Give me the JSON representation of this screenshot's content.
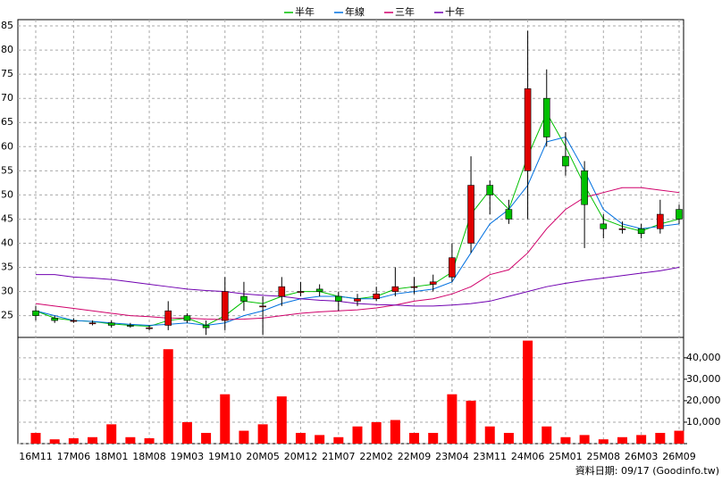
{
  "chart_data": {
    "type": "candlestick",
    "categories": [
      "16M11",
      null,
      "17M06",
      null,
      "18M01",
      null,
      "18M08",
      null,
      "19M03",
      null,
      "19M10",
      null,
      "20M05",
      null,
      "20M12",
      null,
      "21M07",
      null,
      "22M02",
      null,
      "22M09",
      null,
      "23M04",
      null,
      "23M11",
      null,
      "24M06",
      null,
      "25M01",
      null,
      "25M08",
      null,
      "26M03",
      null,
      "26M09"
    ],
    "candles": {
      "up_color": "#e00000",
      "down_color": "#00c000",
      "open": [
        26,
        24.5,
        24,
        23.5,
        23.5,
        23,
        22.5,
        23,
        25,
        23,
        24,
        29,
        27,
        29,
        30,
        30.5,
        29,
        28,
        28.5,
        30,
        31,
        31.5,
        33,
        40,
        52,
        47,
        55,
        70,
        58,
        55,
        44,
        43,
        43,
        43,
        47
      ],
      "high": [
        27,
        25,
        24.5,
        24,
        24,
        23.5,
        23,
        28,
        25.5,
        24,
        33,
        32,
        29,
        33,
        32,
        31.5,
        30,
        29.5,
        31,
        35,
        33,
        33.5,
        40,
        58,
        53,
        49,
        84,
        76,
        63,
        57,
        46,
        44.5,
        44,
        49,
        48
      ],
      "low": [
        24,
        23.5,
        23.5,
        23,
        22.5,
        22.5,
        22,
        22,
        23.5,
        21,
        22,
        26,
        21,
        27,
        29,
        29,
        26,
        27,
        28,
        29,
        29.5,
        30,
        32,
        38,
        46,
        44,
        45,
        60,
        54,
        39,
        41,
        42,
        41,
        42,
        44
      ],
      "close": [
        25,
        24,
        24,
        23.5,
        23,
        22.8,
        22.5,
        26,
        24,
        22.5,
        30,
        28,
        27,
        31,
        30,
        30,
        28,
        28.5,
        29.5,
        31,
        31,
        32,
        37,
        52,
        50,
        45,
        72,
        62,
        56,
        48,
        43,
        43,
        42,
        46,
        45
      ]
    },
    "volume": {
      "color": "#ff0000",
      "axis": "y2",
      "values": [
        5000,
        2000,
        2500,
        3000,
        9000,
        3000,
        2500,
        44000,
        10000,
        5000,
        23000,
        6000,
        9000,
        22000,
        5000,
        4000,
        3000,
        8000,
        10000,
        11000,
        5000,
        5000,
        23000,
        20000,
        8000,
        5000,
        48000,
        8000,
        3000,
        4000,
        2000,
        3000,
        4000,
        5000,
        6000
      ]
    },
    "series": [
      {
        "name": "半年",
        "color": "#00c000",
        "values": [
          26,
          24.5,
          24,
          23.8,
          23.3,
          23,
          22.8,
          24,
          24.5,
          23,
          25,
          28,
          27.5,
          29,
          30,
          30,
          29,
          28.5,
          29,
          30.5,
          31,
          31.5,
          34,
          46,
          51,
          47,
          58,
          67,
          60,
          52,
          45,
          43.5,
          42.5,
          44,
          45
        ]
      },
      {
        "name": "年線",
        "color": "#0070e0",
        "values": [
          26,
          25,
          24,
          23.8,
          23.5,
          23.2,
          23,
          23.2,
          23.5,
          23,
          23.5,
          25,
          26,
          27.5,
          28.5,
          29,
          29,
          28.5,
          28.5,
          29.5,
          30,
          30.5,
          32,
          38,
          44,
          47,
          52,
          61,
          62,
          55,
          47,
          44,
          43,
          43.5,
          44
        ]
      },
      {
        "name": "三年",
        "color": "#d0006a",
        "values": [
          27.5,
          27,
          26.5,
          26,
          25.5,
          25,
          24.8,
          24.5,
          24.5,
          24.3,
          24.2,
          24.3,
          24.5,
          25,
          25.5,
          25.8,
          26,
          26.2,
          26.6,
          27.2,
          28,
          28.5,
          29.5,
          31,
          33.5,
          34.5,
          38,
          43,
          47,
          49.5,
          50.5,
          51.5,
          51.5,
          51,
          50.5
        ]
      },
      {
        "name": "十年",
        "color": "#7000b0",
        "values": [
          33.5,
          33.5,
          33,
          32.8,
          32.5,
          32,
          31.5,
          31,
          30.5,
          30.2,
          30,
          29.5,
          29.2,
          29,
          28.5,
          28.2,
          28,
          27.5,
          27.3,
          27.2,
          27,
          27,
          27.2,
          27.5,
          28,
          29,
          30,
          31,
          31.7,
          32.3,
          32.8,
          33.3,
          33.8,
          34.3,
          35
        ]
      }
    ],
    "ylim": [
      20.5,
      86.3
    ],
    "yticks": [
      25,
      30,
      35,
      40,
      45,
      50,
      55,
      60,
      65,
      70,
      75,
      80,
      85
    ],
    "y2lim": [
      0,
      49500
    ],
    "y2ticks": [
      0,
      {
        "value": 10000,
        "label": "10,000"
      },
      {
        "value": 20000,
        "label": "20,000"
      },
      {
        "value": 30000,
        "label": "30,000"
      },
      {
        "value": 40000,
        "label": "40,000"
      }
    ],
    "grid": true,
    "legend": "top",
    "source": "資料日期: 09/17  (Goodinfo.tw)"
  }
}
